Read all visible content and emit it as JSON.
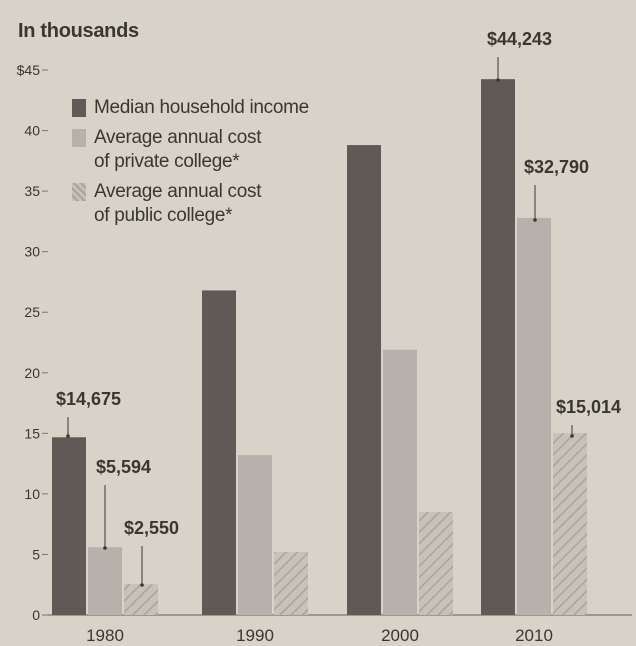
{
  "header": {
    "unit_label": "In thousands"
  },
  "legend": {
    "items": [
      {
        "label": "Median household income",
        "color": "#5f5a55",
        "pattern": "solid"
      },
      {
        "label": "Average annual cost\nof private college*",
        "color": "#b6b2ab",
        "pattern": "solid"
      },
      {
        "label": "Average annual cost\nof public college*",
        "color": "#c6c1b9",
        "pattern": "hatched"
      }
    ]
  },
  "colors": {
    "background": "#d8d3c8",
    "axis": "#7b766f",
    "text": "#3a3733",
    "median_income": "#5f5a55",
    "private_college": "#b6b2ab",
    "public_college": "#c6c1b9"
  },
  "chart_data": {
    "type": "bar",
    "title": "",
    "xlabel": "",
    "ylabel": "In thousands",
    "categories": [
      "1980",
      "1990",
      "2000",
      "2010"
    ],
    "ylim": [
      0,
      45
    ],
    "yticks": [
      0,
      5,
      10,
      15,
      20,
      25,
      30,
      35,
      40,
      45
    ],
    "ytick_labels": [
      "0",
      "5",
      "10",
      "15",
      "20",
      "25",
      "30",
      "35",
      "40",
      "$45"
    ],
    "series": [
      {
        "name": "Median household income",
        "values": [
          14.675,
          26.8,
          38.8,
          44.243
        ]
      },
      {
        "name": "Average annual cost of private college*",
        "values": [
          5.594,
          13.2,
          21.9,
          32.79
        ]
      },
      {
        "name": "Average annual cost of public college*",
        "values": [
          2.55,
          5.2,
          8.5,
          15.014
        ]
      }
    ],
    "annotations": [
      {
        "series": 0,
        "category": 0,
        "text": "$14,675"
      },
      {
        "series": 1,
        "category": 0,
        "text": "$5,594"
      },
      {
        "series": 2,
        "category": 0,
        "text": "$2,550"
      },
      {
        "series": 0,
        "category": 3,
        "text": "$44,243"
      },
      {
        "series": 1,
        "category": 3,
        "text": "$32,790"
      },
      {
        "series": 2,
        "category": 3,
        "text": "$15,014"
      }
    ],
    "grid": false,
    "legend_position": "top-left"
  }
}
